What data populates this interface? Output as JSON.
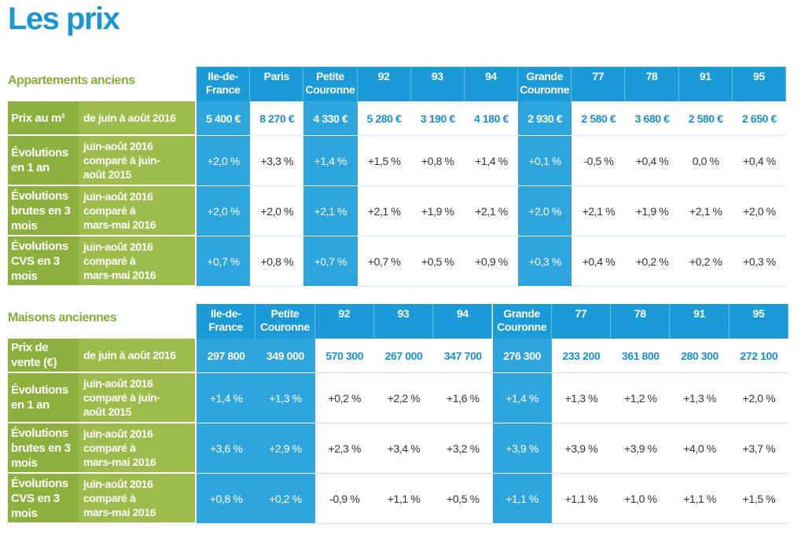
{
  "title": "Les prix",
  "tables": [
    {
      "heading": "Appartements anciens",
      "columns": [
        "Ile-de-France",
        "Paris",
        "Petite Couronne",
        "92",
        "93",
        "94",
        "Grande Couronne",
        "77",
        "78",
        "91",
        "95"
      ],
      "highlight_columns": [
        0,
        2,
        6
      ],
      "rows": [
        {
          "label": "Prix au m²",
          "period": "de juin à août 2016",
          "values": [
            "5 400 €",
            "8 270 €",
            "4 330 €",
            "5 280 €",
            "3 190 €",
            "4 180 €",
            "2 930 €",
            "2 580 €",
            "3 680 €",
            "2 580 €",
            "2 650 €"
          ]
        },
        {
          "label": "Évolutions en 1 an",
          "period": "juin-août 2016 comparé à juin-août 2015",
          "values": [
            "+2,0 %",
            "+3,3 %",
            "+1,4 %",
            "+1,5 %",
            "+0,8 %",
            "+1,4 %",
            "+0,1 %",
            "-0,5 %",
            "+0,4 %",
            "0,0 %",
            "+0,4 %"
          ]
        },
        {
          "label": "Évolutions brutes en 3 mois",
          "period": "juin-août 2016 comparé à mars-mai 2016",
          "values": [
            "+2,0 %",
            "+2,0 %",
            "+2,1 %",
            "+2,1 %",
            "+1,9 %",
            "+2,1 %",
            "+2,0 %",
            "+2,1 %",
            "+1,9 %",
            "+2,1 %",
            "+2,0 %"
          ]
        },
        {
          "label": "Évolutions CVS en 3 mois",
          "period": "juin-août 2016 comparé à mars-mai 2016",
          "values": [
            "+0,7 %",
            "+0,8 %",
            "+0,7 %",
            "+0,7 %",
            "+0,5 %",
            "+0,9 %",
            "+0,3 %",
            "+0,4 %",
            "+0,2 %",
            "+0,2 %",
            "+0,3 %"
          ]
        }
      ]
    },
    {
      "heading": "Maisons anciennes",
      "columns": [
        "Ile-de-France",
        "Petite Couronne",
        "92",
        "93",
        "94",
        "Grande Couronne",
        "77",
        "78",
        "91",
        "95"
      ],
      "highlight_columns": [
        0,
        1,
        5
      ],
      "rows": [
        {
          "label": "Prix de vente (€)",
          "period": "de juin à août 2016",
          "values": [
            "297 800",
            "349 000",
            "570 300",
            "267 000",
            "347 700",
            "276 300",
            "233 200",
            "361 800",
            "280 300",
            "272 100"
          ]
        },
        {
          "label": "Évolutions en 1 an",
          "period": "juin-août 2016 comparé à juin-août 2015",
          "values": [
            "+1,4 %",
            "+1,3 %",
            "+0,2 %",
            "+2,2 %",
            "+1,6 %",
            "+1,4 %",
            "+1,3 %",
            "+1,2 %",
            "+1,3 %",
            "+2,0 %"
          ]
        },
        {
          "label": "Évolutions brutes en 3 mois",
          "period": "juin-août 2016 comparé à mars-mai 2016",
          "values": [
            "+3,6 %",
            "+2,9 %",
            "+2,3 %",
            "+3,4 %",
            "+3,2 %",
            "+3,9 %",
            "+3,9 %",
            "+3,9 %",
            "+4,0 %",
            "+3,7 %"
          ]
        },
        {
          "label": "Évolutions CVS en 3 mois",
          "period": "juin-août 2016 comparé à mars-mai 2016",
          "values": [
            "+0,8 %",
            "+0,2 %",
            "-0,9 %",
            "+1,1 %",
            "+0,5 %",
            "+1,1 %",
            "+1,1 %",
            "+1,0 %",
            "+1,1 %",
            "+1,5 %"
          ]
        }
      ]
    }
  ]
}
